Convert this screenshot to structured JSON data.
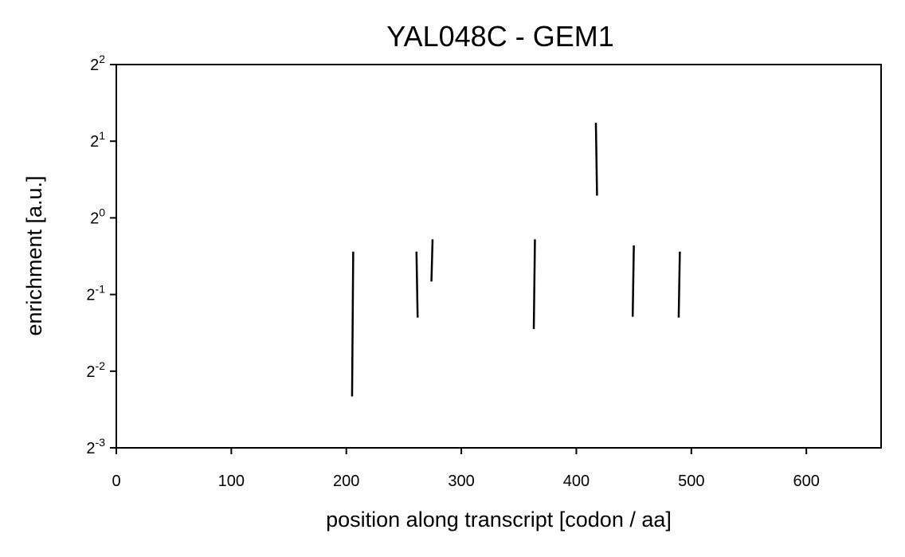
{
  "chart_data": {
    "type": "line",
    "title": "YAL048C - GEM1",
    "xlabel": "position along transcript [codon / aa]",
    "ylabel": "enrichment [a.u.]",
    "xlim": [
      0,
      665
    ],
    "ylim_log2": [
      -3,
      2
    ],
    "y_scale": "log2",
    "x_ticks": [
      "0",
      "100",
      "200",
      "300",
      "400",
      "500",
      "600"
    ],
    "x_tick_values": [
      0,
      100,
      200,
      300,
      400,
      500,
      600
    ],
    "y_ticks": [
      {
        "base": "2",
        "exp": "2",
        "log2": 2
      },
      {
        "base": "2",
        "exp": "1",
        "log2": 1
      },
      {
        "base": "2",
        "exp": "0",
        "log2": 0
      },
      {
        "base": "2",
        "exp": "-1",
        "log2": -1
      },
      {
        "base": "2",
        "exp": "-2",
        "log2": -2
      },
      {
        "base": "2",
        "exp": "-3",
        "log2": -3
      }
    ],
    "grid": false,
    "segments": [
      {
        "x1": 205,
        "y1": -2.33,
        "x2": 206,
        "y2": -0.44
      },
      {
        "x1": 261,
        "y1": -0.44,
        "x2": 262,
        "y2": -1.3
      },
      {
        "x1": 274,
        "y1": -0.83,
        "x2": 275,
        "y2": -0.28
      },
      {
        "x1": 363,
        "y1": -1.45,
        "x2": 364,
        "y2": -0.28
      },
      {
        "x1": 417,
        "y1": 1.24,
        "x2": 418,
        "y2": 0.29
      },
      {
        "x1": 449,
        "y1": -1.29,
        "x2": 450,
        "y2": -0.36
      },
      {
        "x1": 489,
        "y1": -1.3,
        "x2": 490,
        "y2": -0.44
      }
    ],
    "colors": {
      "line": "#000000",
      "axis": "#000000"
    }
  }
}
